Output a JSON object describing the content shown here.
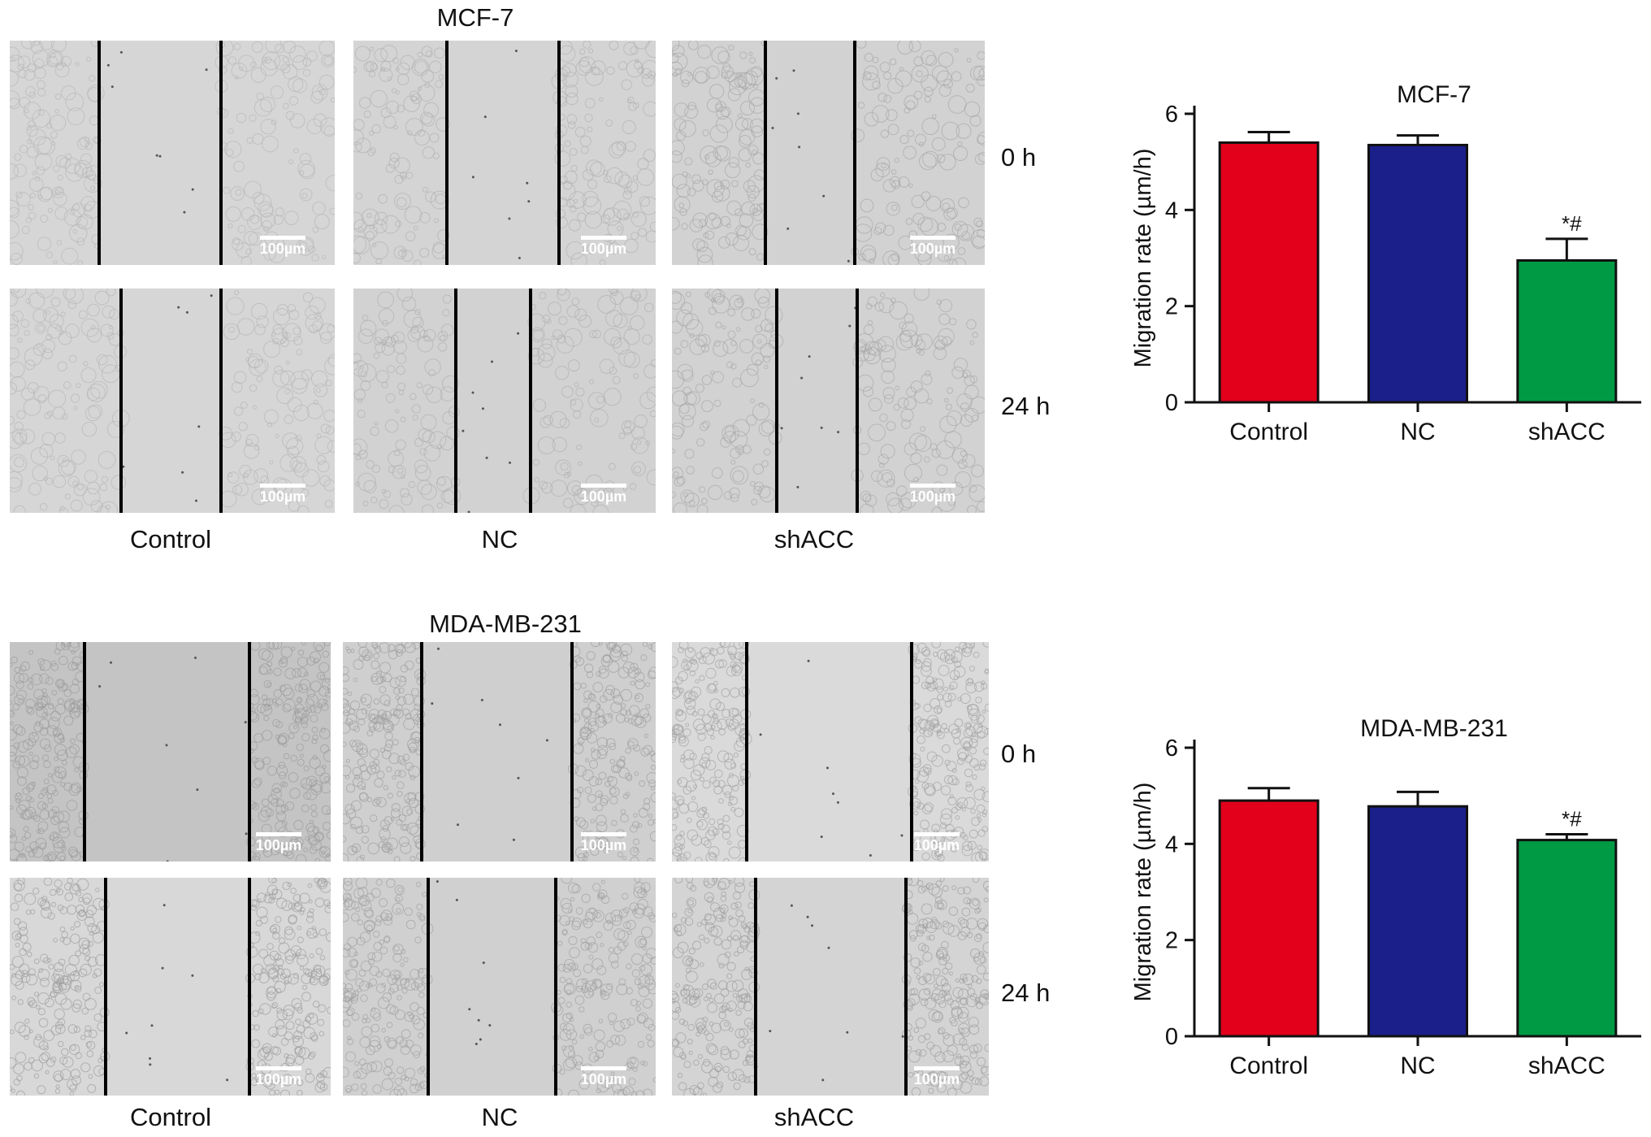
{
  "microscopy": {
    "sections": [
      {
        "title": "MCF-7",
        "row_labels": [
          "0 h",
          "24 h"
        ],
        "col_labels": [
          "Control",
          "NC",
          "shACC"
        ],
        "scale_label": "100µm"
      },
      {
        "title": "MDA-MB-231",
        "row_labels": [
          "0 h",
          "24 h"
        ],
        "col_labels": [
          "Control",
          "NC",
          "shACC"
        ],
        "scale_label": "100µm"
      }
    ]
  },
  "chart_data": [
    {
      "type": "bar",
      "title": "MCF-7",
      "ylabel": "Migration rate (µm/h)",
      "categories": [
        "Control",
        "NC",
        "shACC"
      ],
      "values": [
        5.4,
        5.35,
        2.95
      ],
      "errors": [
        0.22,
        0.2,
        0.45
      ],
      "annotations": [
        "",
        "",
        "*#"
      ],
      "colors": [
        "#e3001b",
        "#1b1f8a",
        "#009a44"
      ],
      "ylim": [
        0,
        6
      ],
      "yticks": [
        0,
        2,
        4,
        6
      ]
    },
    {
      "type": "bar",
      "title": "MDA-MB-231",
      "ylabel": "Migration rate (µm/h)",
      "categories": [
        "Control",
        "NC",
        "shACC"
      ],
      "values": [
        4.9,
        4.78,
        4.08
      ],
      "errors": [
        0.26,
        0.3,
        0.12
      ],
      "annotations": [
        "",
        "",
        "*#"
      ],
      "colors": [
        "#e3001b",
        "#1b1f8a",
        "#009a44"
      ],
      "ylim": [
        0,
        6
      ],
      "yticks": [
        0,
        2,
        4,
        6
      ]
    }
  ]
}
